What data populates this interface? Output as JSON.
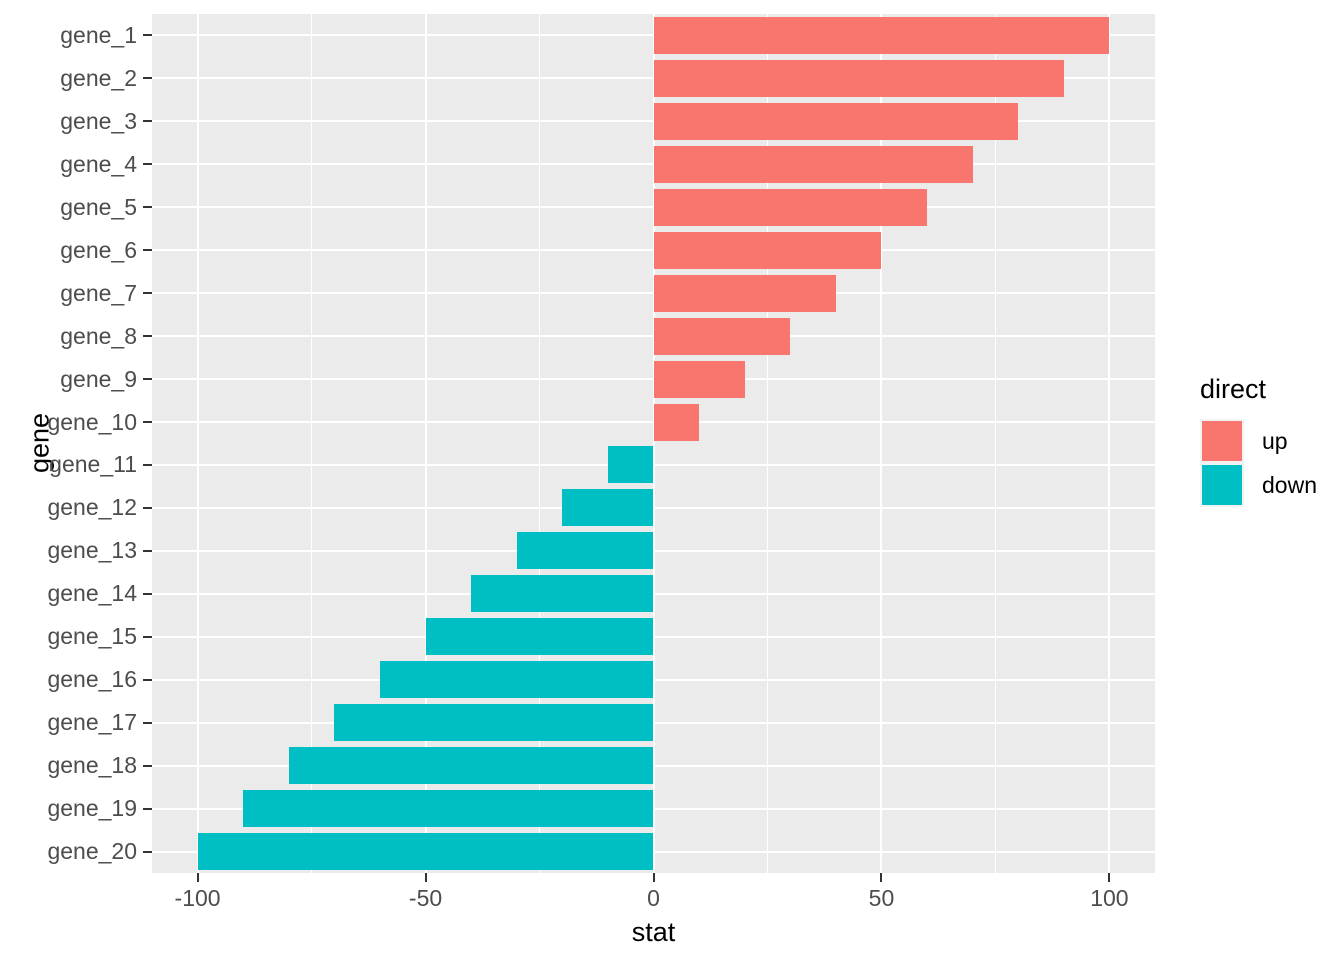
{
  "chart_data": {
    "type": "bar",
    "orientation": "horizontal",
    "xlabel": "stat",
    "ylabel": "gene",
    "xlim": [
      -110,
      110
    ],
    "x_major_ticks": [
      -100,
      -50,
      0,
      50,
      100
    ],
    "x_major_tick_labels": [
      "-100",
      "-50",
      "0",
      "50",
      "100"
    ],
    "x_minor_ticks": [
      -75,
      -25,
      25,
      75
    ],
    "categories": [
      "gene_1",
      "gene_2",
      "gene_3",
      "gene_4",
      "gene_5",
      "gene_6",
      "gene_7",
      "gene_8",
      "gene_9",
      "gene_10",
      "gene_11",
      "gene_12",
      "gene_13",
      "gene_14",
      "gene_15",
      "gene_16",
      "gene_17",
      "gene_18",
      "gene_19",
      "gene_20"
    ],
    "values": [
      100,
      90,
      80,
      70,
      60,
      50,
      40,
      30,
      20,
      10,
      -10,
      -20,
      -30,
      -40,
      -50,
      -60,
      -70,
      -80,
      -90,
      -100
    ],
    "directions": [
      "up",
      "up",
      "up",
      "up",
      "up",
      "up",
      "up",
      "up",
      "up",
      "up",
      "down",
      "down",
      "down",
      "down",
      "down",
      "down",
      "down",
      "down",
      "down",
      "down"
    ],
    "grid": true,
    "colors": {
      "up": "#F8766D",
      "down": "#00BFC4"
    },
    "panel_background": "#EBEBEB",
    "grid_color": "#FFFFFF",
    "axis_text_color": "#4D4D4D",
    "tick_color": "#333333",
    "legend": {
      "position": "right",
      "title": "direct",
      "entries": [
        {
          "label": "up",
          "color": "#F8766D"
        },
        {
          "label": "down",
          "color": "#00BFC4"
        }
      ]
    }
  }
}
